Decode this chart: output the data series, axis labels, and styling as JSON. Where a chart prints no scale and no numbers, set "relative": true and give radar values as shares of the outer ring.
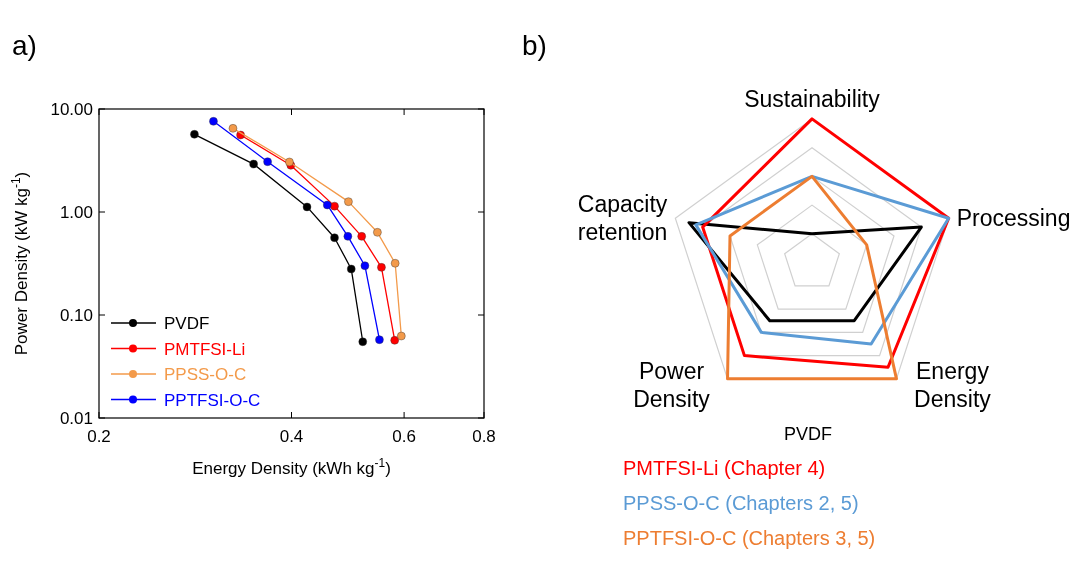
{
  "chart_data": [
    {
      "type": "line",
      "title": "a)",
      "xlabel": "Energy Density (kWh kg$^{-1}$)",
      "ylabel": "Power Density (kW kg$^{-1}$)",
      "log": "xy",
      "xlim": [
        0.2,
        0.8
      ],
      "xticks": [
        0.2,
        0.4,
        0.6,
        0.8
      ],
      "ylim": [
        0.01,
        10
      ],
      "yticks": [
        {
          "value": 0.01,
          "label": "0.01"
        },
        {
          "value": 0.1,
          "label": "0.10"
        },
        {
          "value": 1,
          "label": "1.00"
        },
        {
          "value": 10,
          "label": "10.00"
        }
      ],
      "marker": "circle",
      "legend": "bottom left",
      "grid": false,
      "series": [
        {
          "name": "PVDF",
          "color": "#000000",
          "x": [
            0.282,
            0.349,
            0.423,
            0.467,
            0.496,
            0.517
          ],
          "values": [
            5.68,
            2.92,
            1.12,
            0.563,
            0.28,
            0.055
          ]
        },
        {
          "name": "PMTFSI-Li",
          "color": "#ff0000",
          "x": [
            0.333,
            0.399,
            0.467,
            0.515,
            0.553,
            0.58
          ],
          "values": [
            5.59,
            2.84,
            1.14,
            0.58,
            0.29,
            0.0568
          ]
        },
        {
          "name": "PPSS-O-C",
          "color": "#f39a4a",
          "x": [
            0.324,
            0.397,
            0.491,
            0.545,
            0.581,
            0.594
          ],
          "values": [
            6.49,
            3.06,
            1.26,
            0.635,
            0.318,
            0.0625
          ]
        },
        {
          "name": "PPTFSI-O-C",
          "color": "#0000ff",
          "x": [
            0.302,
            0.367,
            0.455,
            0.49,
            0.521,
            0.549
          ],
          "values": [
            7.59,
            3.08,
            1.17,
            0.58,
            0.301,
            0.0576
          ]
        }
      ]
    },
    {
      "type": "radar",
      "title": "b)",
      "relative": true,
      "grid": true,
      "legend": "bottom",
      "categories": [
        "Sustainability",
        "Processing",
        "Energy Density",
        "Power Density",
        "Capacity retention"
      ],
      "series": [
        {
          "name": "PVDF",
          "color": "#000000",
          "values": [
            0.2,
            0.8,
            0.5,
            0.5,
            0.9
          ]
        },
        {
          "name": "PMTFSI-Li (Chapter 4)",
          "color": "#ff0000",
          "values": [
            1,
            1,
            0.9,
            0.8,
            0.8
          ]
        },
        {
          "name": "PPSS-O-C (Chapters 2, 5)",
          "color": "#5b9bd5",
          "values": [
            0.6,
            1,
            0.7,
            0.6,
            0.85
          ]
        },
        {
          "name": "PPTFSI-O-C (Chapters 3, 5)",
          "color": "#ed7d31",
          "values": [
            0.6,
            0.4,
            1,
            1,
            0.6
          ]
        }
      ]
    }
  ]
}
